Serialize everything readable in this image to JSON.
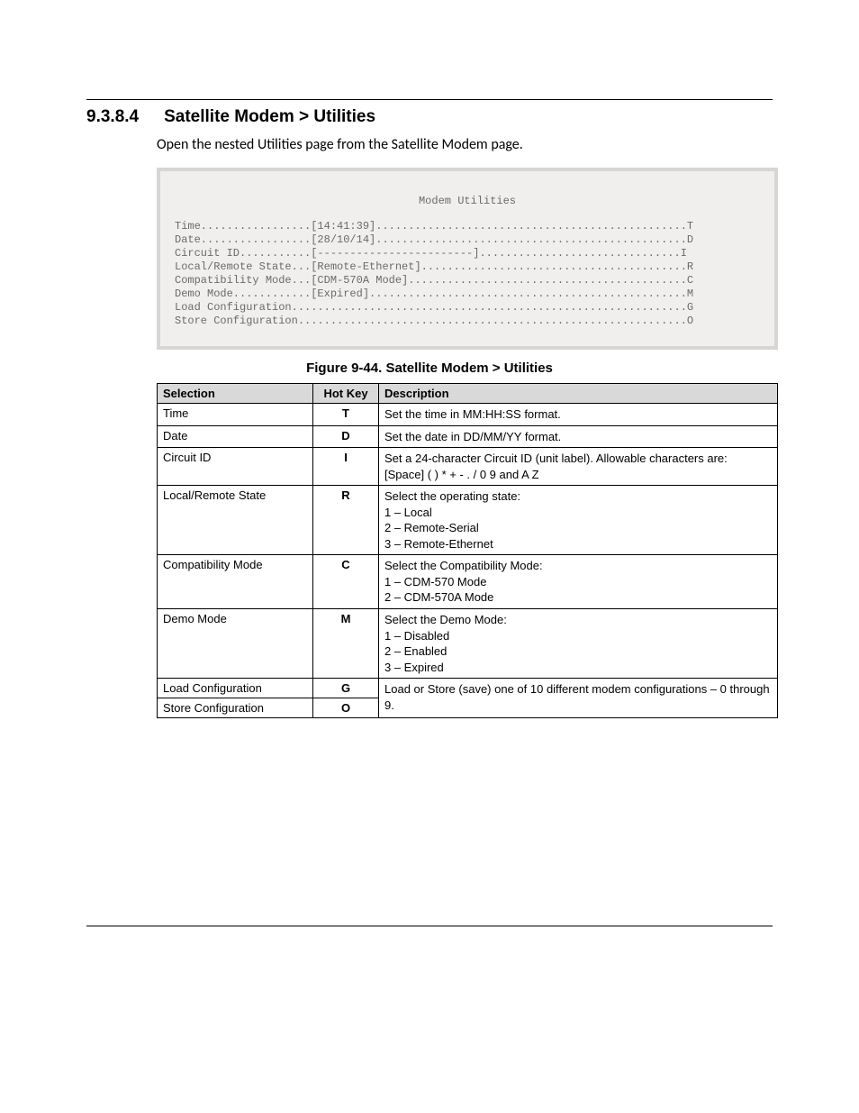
{
  "section": {
    "number": "9.3.8.4",
    "title": "Satellite Modem > Utilities",
    "intro": "Open the nested Utilities page from the Satellite Modem page."
  },
  "terminal": {
    "title": "Modem Utilities",
    "lines": [
      "Time.................[14:41:39]................................................T",
      "Date.................[28/10/14]................................................D",
      "Circuit ID...........[------------------------]...............................I",
      "Local/Remote State...[Remote-Ethernet].........................................R",
      "Compatibility Mode...[CDM-570A Mode]...........................................C",
      "Demo Mode............[Expired].................................................M",
      "Load Configuration.............................................................G",
      "Store Configuration............................................................O"
    ]
  },
  "figure_caption": "Figure 9-44. Satellite Modem > Utilities",
  "table": {
    "headers": {
      "selection": "Selection",
      "hotkey": "Hot Key",
      "description": "Description"
    },
    "rows": [
      {
        "selection": "Time",
        "hotkey": "T",
        "description": "Set the time in MM:HH:SS format."
      },
      {
        "selection": "Date",
        "hotkey": "D",
        "description": "Set the date in DD/MM/YY format."
      },
      {
        "selection": "Circuit ID",
        "hotkey": "I",
        "description": "Set a 24-character Circuit ID (unit label). Allowable characters are:\n[Space] (  ) * +  - . / 0             9 and A            Z"
      },
      {
        "selection": "Local/Remote State",
        "hotkey": "R",
        "description": "Select the operating state:\n    1 – Local\n    2 – Remote-Serial\n    3 – Remote-Ethernet"
      },
      {
        "selection": "Compatibility Mode",
        "hotkey": "C",
        "description": "Select the Compatibility Mode:\n    1 – CDM-570 Mode\n    2 – CDM-570A Mode"
      },
      {
        "selection": "Demo Mode",
        "hotkey": "M",
        "description": "Select the Demo Mode:\n    1 – Disabled\n    2 – Enabled\n    3 – Expired"
      }
    ],
    "merged": {
      "row1": {
        "selection": "Load Configuration",
        "hotkey": "G"
      },
      "row2": {
        "selection": "Store Configuration",
        "hotkey": "O"
      },
      "description": "Load or Store (save) one of 10 different modem configurations – 0 through 9."
    }
  }
}
